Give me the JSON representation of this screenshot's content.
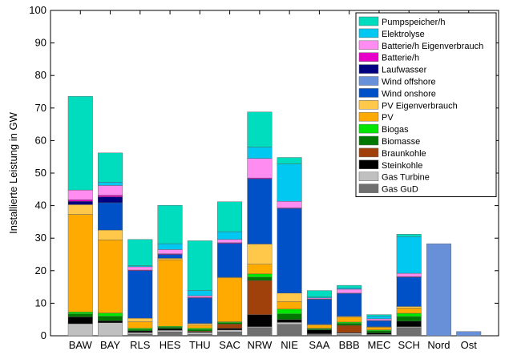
{
  "chart_data": {
    "type": "bar",
    "stacked": true,
    "ylabel": "Installierte Leistung in GW",
    "xlabel": "",
    "ylim": [
      0,
      100
    ],
    "yticks": [
      0,
      10,
      20,
      30,
      40,
      50,
      60,
      70,
      80,
      90,
      100
    ],
    "grid": false,
    "legend_position": "top-right",
    "categories": [
      "BAW",
      "BAY",
      "RLS",
      "HES",
      "THU",
      "SAC",
      "NRW",
      "NIE",
      "SAA",
      "BBB",
      "MEC",
      "SCH",
      "Nord",
      "Ost"
    ],
    "series": [
      {
        "name": "Gas GuD",
        "color": "#707070",
        "values": [
          0,
          0,
          0.5,
          1.2,
          0.4,
          1.2,
          2.5,
          3.5,
          0.4,
          0.3,
          0.2,
          2.5,
          0,
          0
        ]
      },
      {
        "name": "Gas Turbine",
        "color": "#c0c0c0",
        "values": [
          3.7,
          4,
          0.5,
          0.5,
          0.6,
          0.6,
          0.3,
          0.6,
          0.2,
          0.5,
          0.2,
          0.3,
          0,
          0
        ]
      },
      {
        "name": "Steinkohle",
        "color": "#000000",
        "values": [
          2.1,
          0.6,
          0.5,
          0.5,
          0.2,
          0.5,
          3.7,
          0.9,
          1.2,
          0.2,
          0.5,
          1.7,
          0,
          0
        ]
      },
      {
        "name": "Braunkohle",
        "color": "#a0400a",
        "values": [
          0,
          0,
          0,
          0,
          0.2,
          1.3,
          10.5,
          0,
          0,
          2.2,
          0,
          0,
          0,
          0
        ]
      },
      {
        "name": "Biomasse",
        "color": "#007800",
        "values": [
          0.9,
          1.4,
          0.4,
          0.4,
          0.5,
          0.4,
          1.0,
          1.7,
          0.3,
          0.6,
          0.6,
          1.4,
          0,
          0
        ]
      },
      {
        "name": "Biogas",
        "color": "#00e600",
        "values": [
          0.6,
          1.0,
          0.4,
          0.3,
          0.4,
          0.3,
          1.0,
          1.5,
          0.2,
          0.4,
          0.3,
          1.0,
          0,
          0
        ]
      },
      {
        "name": "PV",
        "color": "#ffaa00",
        "values": [
          30.0,
          22.5,
          2.0,
          20.5,
          1.0,
          13.5,
          3.0,
          2.3,
          1.0,
          1.5,
          0.8,
          1.6,
          0,
          0
        ]
      },
      {
        "name": "PV Eigenverbrauch",
        "color": "#ffc84b",
        "values": [
          3.0,
          3.0,
          1.1,
          0.4,
          0.5,
          0.2,
          6.2,
          2.6,
          0.2,
          0.3,
          0.2,
          0.5,
          0,
          0
        ]
      },
      {
        "name": "Wind onshore",
        "color": "#0050c8",
        "values": [
          0,
          8.4,
          14.6,
          1.2,
          7.8,
          10.4,
          20.0,
          26.0,
          7.7,
          7.0,
          1.8,
          9.0,
          0,
          0
        ]
      },
      {
        "name": "Wind offshore",
        "color": "#6890d8",
        "values": [
          0,
          0,
          0,
          0,
          0,
          0,
          0,
          0,
          0,
          0,
          0,
          0,
          28.3,
          1.3
        ]
      },
      {
        "name": "Laufwasser",
        "color": "#000080",
        "values": [
          1.0,
          1.8,
          0,
          0,
          0,
          0,
          0,
          0,
          0,
          0,
          0,
          0,
          0,
          0
        ]
      },
      {
        "name": "Batterie/h",
        "color": "#e600c8",
        "values": [
          0.5,
          0.5,
          0.2,
          0.2,
          0.2,
          0.2,
          0.3,
          0.2,
          0.1,
          0.1,
          0.1,
          0.2,
          0,
          0
        ]
      },
      {
        "name": "Batterie/h Eigenverbrauch",
        "color": "#ff8cf0",
        "values": [
          3.0,
          3.0,
          1.0,
          1.3,
          0.5,
          1.0,
          6.0,
          2.0,
          0.3,
          1.2,
          0.5,
          1.0,
          0,
          0
        ]
      },
      {
        "name": "Elektrolyse",
        "color": "#00c8f0",
        "values": [
          0,
          1.0,
          0.3,
          1.8,
          1.6,
          2.4,
          3.5,
          11.5,
          0.3,
          0.4,
          0.9,
          11.3,
          0,
          0
        ]
      },
      {
        "name": "Pumpspeicher/h",
        "color": "#00dcbe",
        "values": [
          28.8,
          9.0,
          8.1,
          11.8,
          15.3,
          9.2,
          10.8,
          2.0,
          2.0,
          0.8,
          0.4,
          0.7,
          0,
          0
        ]
      }
    ]
  }
}
